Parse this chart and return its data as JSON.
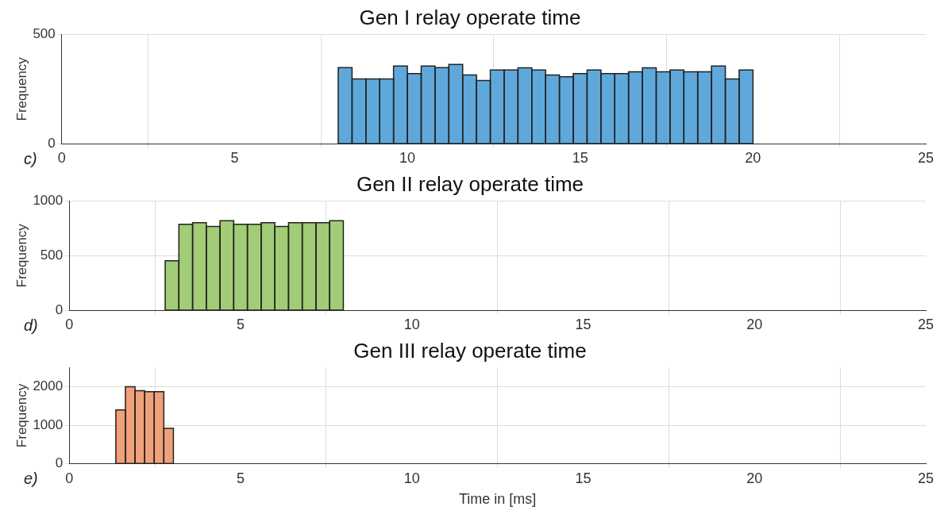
{
  "chart_data": [
    {
      "type": "histogram",
      "title": "Gen I relay operate time",
      "ylabel": "Frequency",
      "annotations": [
        "c)"
      ],
      "color": "#5fa8dc",
      "bins": [
        8,
        8.4,
        8.8,
        9.2,
        9.6,
        10,
        10.4,
        10.8,
        11.2,
        11.6,
        12,
        12.4,
        12.8,
        13.2,
        13.6,
        14,
        14.4,
        14.8,
        15.2,
        15.6,
        16,
        16.4,
        16.8,
        17.2,
        17.6,
        18,
        18.4,
        18.8,
        19.2,
        19.6,
        20
      ],
      "values": [
        348,
        296,
        296,
        296,
        355,
        321,
        355,
        348,
        362,
        314,
        289,
        337,
        337,
        347,
        337,
        314,
        306,
        321,
        337,
        321,
        321,
        329,
        347,
        329,
        337,
        329,
        329,
        355,
        296,
        337
      ],
      "xlim": [
        0,
        25
      ],
      "xticks": [
        0,
        5,
        10,
        15,
        20,
        25
      ],
      "ylim": [
        0,
        500
      ],
      "yticks": [
        0,
        500
      ],
      "grid": true
    },
    {
      "type": "histogram",
      "title": "Gen II relay operate time",
      "ylabel": "Frequency",
      "annotations": [
        "d)"
      ],
      "color": "#a2cc75",
      "bins": [
        2.8,
        3.2,
        3.6,
        4,
        4.4,
        4.8,
        5.2,
        5.6,
        6,
        6.4,
        6.8,
        7.2,
        7.6,
        8
      ],
      "values": [
        454,
        787,
        800,
        767,
        818,
        787,
        787,
        800,
        767,
        800,
        800,
        800,
        818
      ],
      "xlim": [
        0,
        25
      ],
      "xticks": [
        0,
        5,
        10,
        15,
        20,
        25
      ],
      "ylim": [
        0,
        1000
      ],
      "yticks": [
        0,
        500,
        1000
      ],
      "grid": true
    },
    {
      "type": "histogram",
      "title": "Gen III relay operate time",
      "xlabel": "Time in [ms]",
      "ylabel": "Frequency",
      "annotations": [
        "e)"
      ],
      "color": "#f0a07a",
      "bins": [
        1.36,
        1.64,
        1.92,
        2.2,
        2.48,
        2.76,
        3.04
      ],
      "values": [
        1400,
        2000,
        1900,
        1870,
        1870,
        920
      ],
      "xlim": [
        0,
        25
      ],
      "xticks": [
        0,
        5,
        10,
        15,
        20,
        25
      ],
      "ylim": [
        0,
        2500
      ],
      "yticks": [
        0,
        1000,
        2000
      ],
      "grid": true
    }
  ]
}
